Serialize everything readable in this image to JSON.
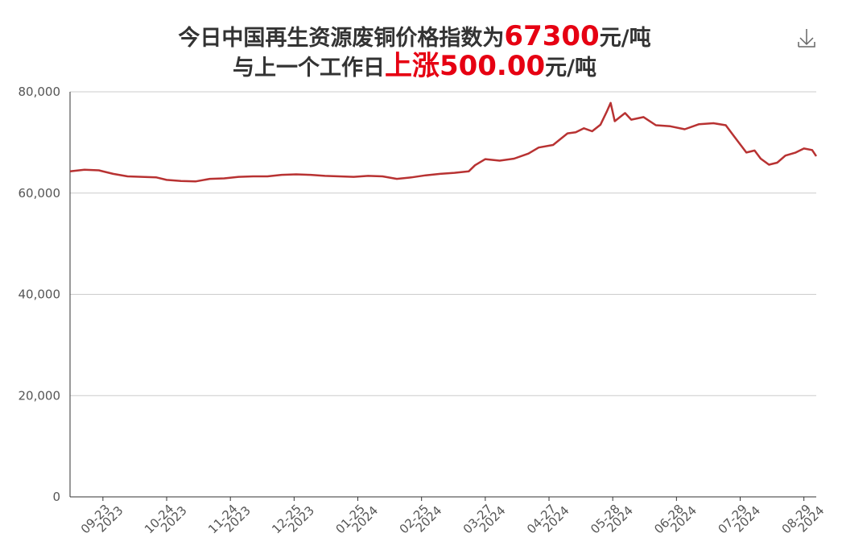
{
  "chart_data": {
    "type": "line",
    "title": {
      "line1": [
        "今日中国再生资源废铜价格指数为",
        "67300",
        "元/吨"
      ],
      "line2": [
        "与上一个工作日",
        "上涨",
        "500.00",
        "元/吨"
      ]
    },
    "x": [
      "2023-09-07",
      "2023-09-14",
      "2023-09-21",
      "2023-09-28",
      "2023-10-05",
      "2023-10-12",
      "2023-10-19",
      "2023-10-24",
      "2023-10-31",
      "2023-11-07",
      "2023-11-14",
      "2023-11-21",
      "2023-11-28",
      "2023-12-05",
      "2023-12-12",
      "2023-12-19",
      "2023-12-26",
      "2024-01-02",
      "2024-01-09",
      "2024-01-16",
      "2024-01-23",
      "2024-01-30",
      "2024-02-06",
      "2024-02-13",
      "2024-02-20",
      "2024-02-27",
      "2024-03-05",
      "2024-03-12",
      "2024-03-19",
      "2024-03-22",
      "2024-03-27",
      "2024-04-03",
      "2024-04-10",
      "2024-04-17",
      "2024-04-22",
      "2024-04-29",
      "2024-05-06",
      "2024-05-10",
      "2024-05-14",
      "2024-05-18",
      "2024-05-22",
      "2024-05-25",
      "2024-05-27",
      "2024-05-29",
      "2024-06-03",
      "2024-06-06",
      "2024-06-12",
      "2024-06-18",
      "2024-06-25",
      "2024-07-02",
      "2024-07-09",
      "2024-07-16",
      "2024-07-22",
      "2024-07-26",
      "2024-08-01",
      "2024-08-05",
      "2024-08-08",
      "2024-08-12",
      "2024-08-16",
      "2024-08-20",
      "2024-08-25",
      "2024-08-29",
      "2024-09-02",
      "2024-09-04"
    ],
    "series": [
      {
        "color": "#b83232",
        "values": [
          64300,
          64600,
          64500,
          63800,
          63300,
          63200,
          63100,
          62600,
          62400,
          62300,
          62800,
          62900,
          63200,
          63300,
          63300,
          63600,
          63700,
          63600,
          63400,
          63300,
          63200,
          63400,
          63300,
          62800,
          63100,
          63500,
          63800,
          64000,
          64300,
          65500,
          66700,
          66400,
          66800,
          67800,
          69000,
          69500,
          71800,
          72000,
          72800,
          72200,
          73500,
          76000,
          77800,
          74200,
          75800,
          74500,
          75000,
          73400,
          73200,
          72600,
          73600,
          73800,
          73400,
          71200,
          68000,
          68400,
          66800,
          65600,
          66000,
          67400,
          68000,
          68800,
          68500,
          67300
        ]
      }
    ],
    "xlim": [
      "2023-09-07",
      "2024-09-04"
    ],
    "xticks": [
      {
        "value": "2023-09-23",
        "label": [
          "09-23",
          "2023"
        ]
      },
      {
        "value": "2023-10-24",
        "label": [
          "10-24",
          "2023"
        ]
      },
      {
        "value": "2023-11-24",
        "label": [
          "11-24",
          "2023"
        ]
      },
      {
        "value": "2023-12-25",
        "label": [
          "12-25",
          "2023"
        ]
      },
      {
        "value": "2024-01-25",
        "label": [
          "01-25",
          "2024"
        ]
      },
      {
        "value": "2024-02-25",
        "label": [
          "02-25",
          "2024"
        ]
      },
      {
        "value": "2024-03-27",
        "label": [
          "03-27",
          "2024"
        ]
      },
      {
        "value": "2024-04-27",
        "label": [
          "04-27",
          "2024"
        ]
      },
      {
        "value": "2024-05-28",
        "label": [
          "05-28",
          "2024"
        ]
      },
      {
        "value": "2024-06-28",
        "label": [
          "06-28",
          "2024"
        ]
      },
      {
        "value": "2024-07-29",
        "label": [
          "07-29",
          "2024"
        ]
      },
      {
        "value": "2024-08-29",
        "label": [
          "08-29",
          "2024"
        ]
      }
    ],
    "ylim": [
      0,
      80000
    ],
    "yticks": [
      0,
      {
        "value": 20000,
        "label": "20,000"
      },
      {
        "value": 40000,
        "label": "40,000"
      },
      {
        "value": 60000,
        "label": "60,000"
      },
      {
        "value": 80000,
        "label": "80,000"
      }
    ],
    "grid": true
  }
}
